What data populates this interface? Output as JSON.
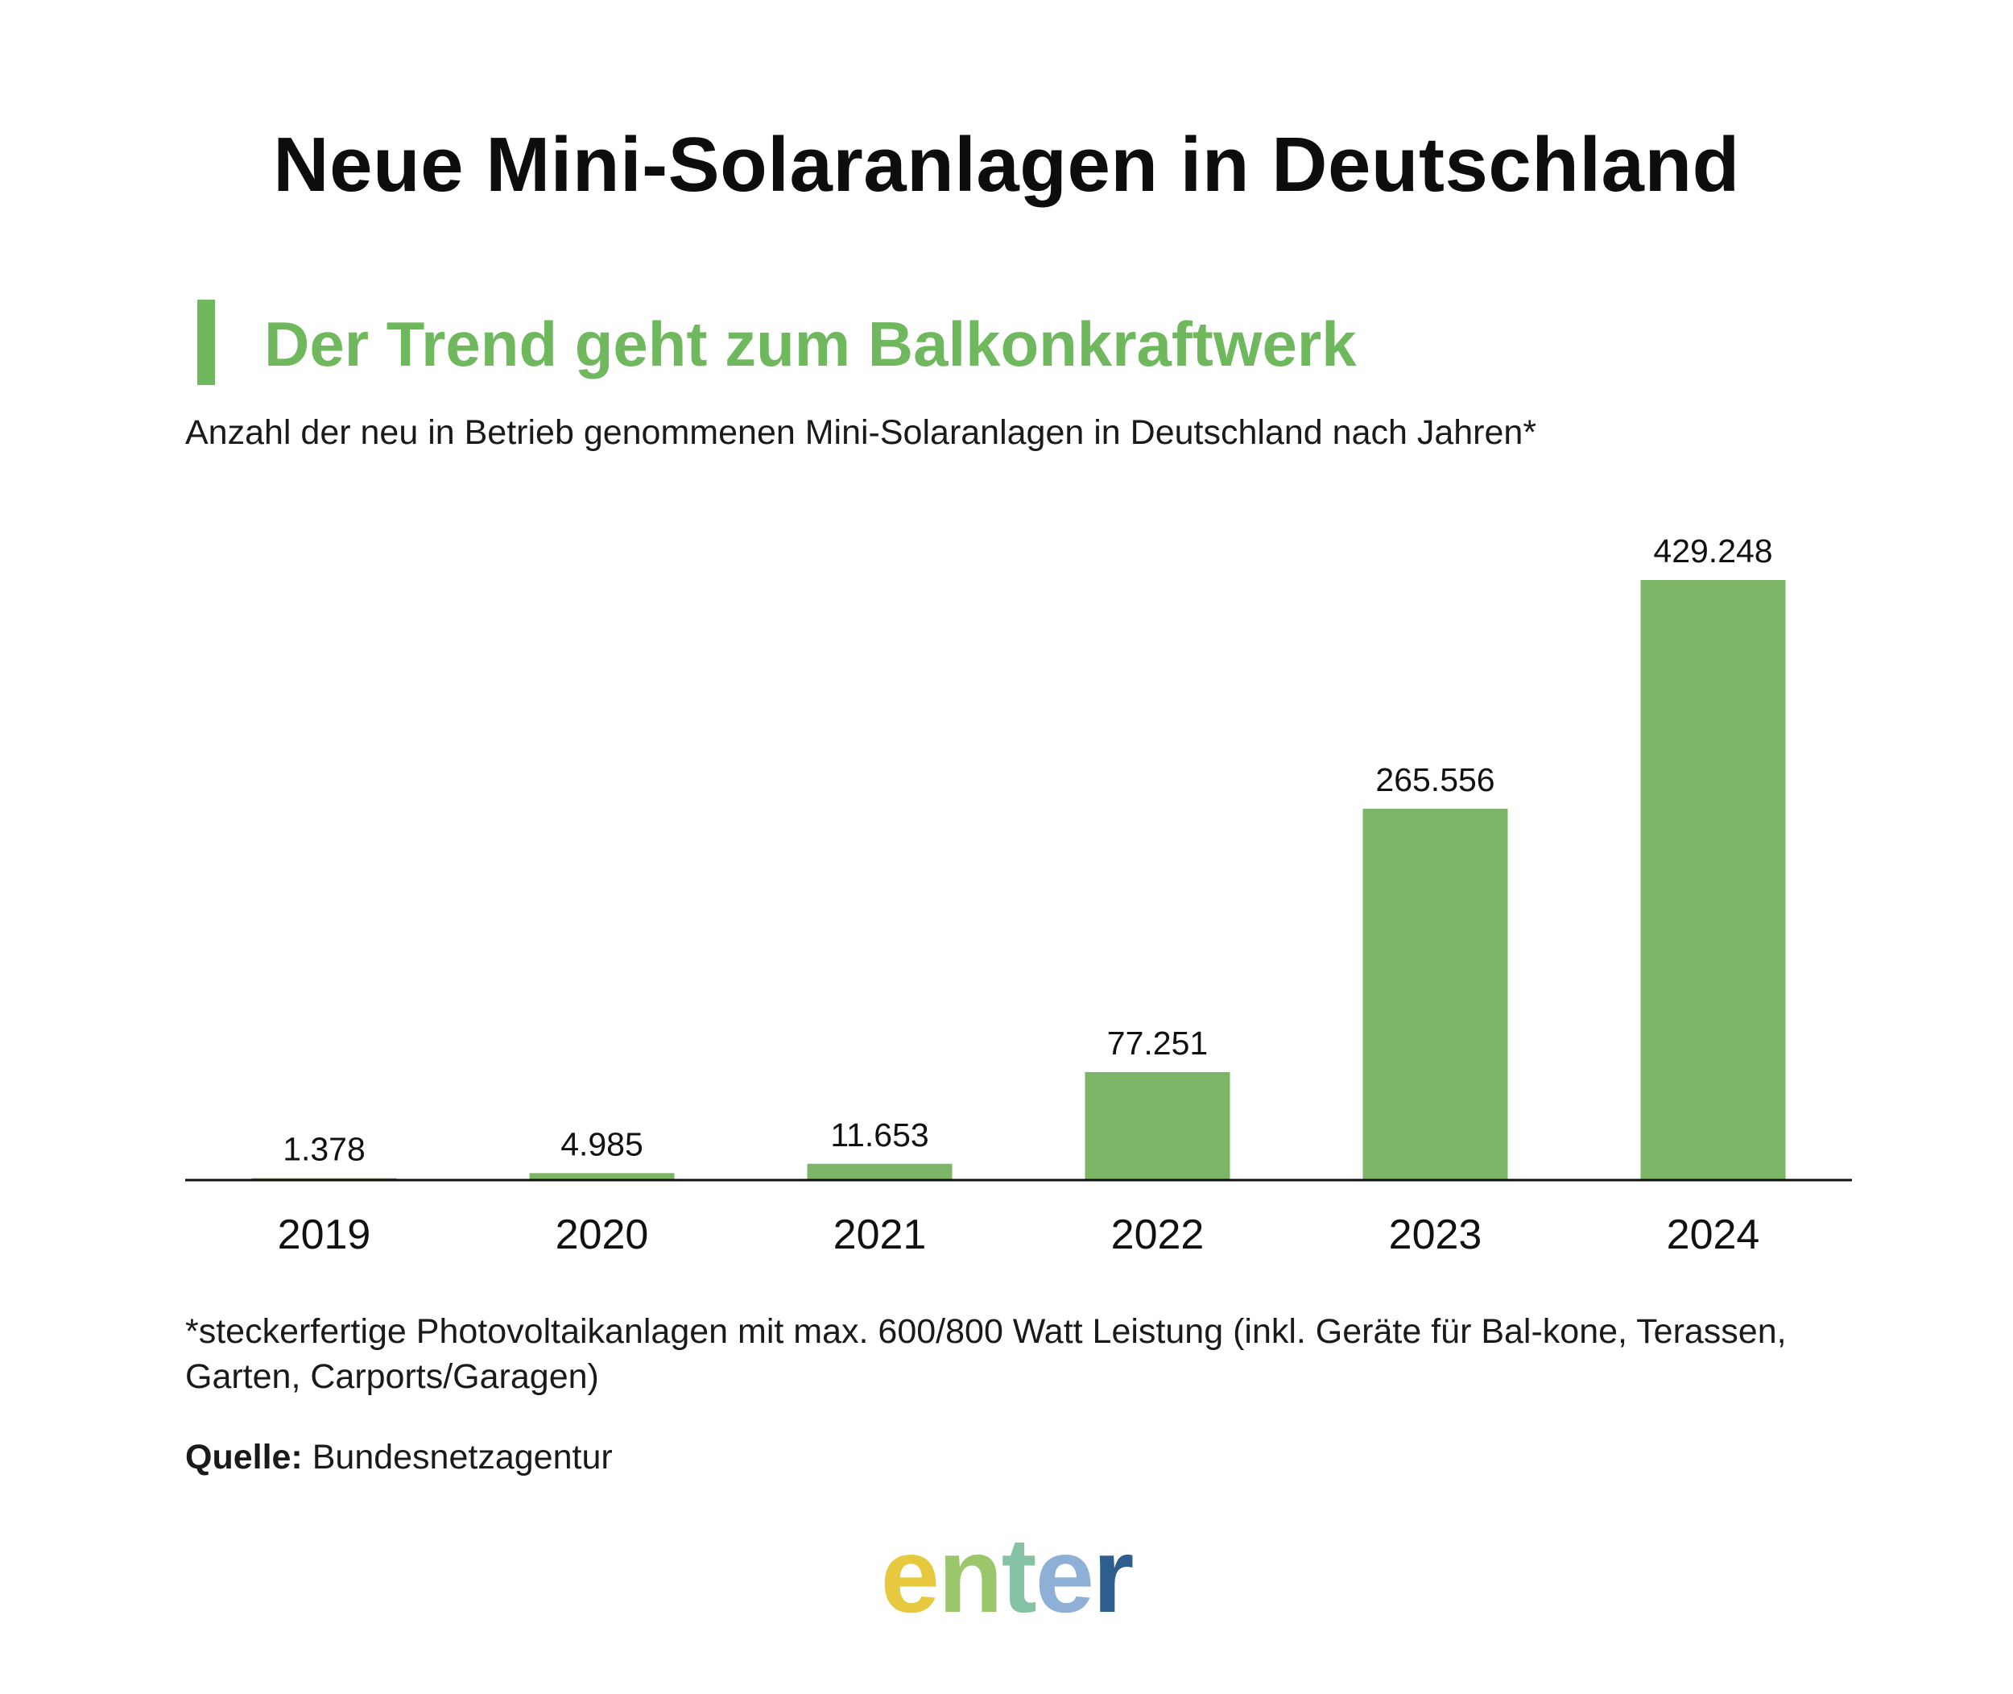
{
  "page": {
    "title": "Neue Mini-Solaranlagen in Deutschland",
    "subtitle": "Der Trend geht zum Balkonkraftwerk",
    "caption": "Anzahl der neu in Betrieb genommenen Mini-Solaranlagen in Deutschland nach Jahren*",
    "footnote": "*steckerfertige Photovoltaikanlagen mit max. 600/800 Watt Leistung (inkl. Geräte für Bal-kone, Terassen, Garten, Carports/Garagen)",
    "source_label": "Quelle:",
    "source_value": "Bundesnetzagentur",
    "logo_text": "enter",
    "logo_letters": [
      "e",
      "n",
      "t",
      "e",
      "r"
    ]
  },
  "colors": {
    "bar": "#7db567",
    "accent": "#6fb85e",
    "text": "#111111",
    "axis": "#111111",
    "logo": [
      "#e6c93e",
      "#9cc66b",
      "#86c2a4",
      "#8fb0d6",
      "#2e5e8e"
    ]
  },
  "chart_data": {
    "type": "bar",
    "title": "Der Trend geht zum Balkonkraftwerk",
    "xlabel": "",
    "ylabel": "",
    "categories": [
      "2019",
      "2020",
      "2021",
      "2022",
      "2023",
      "2024"
    ],
    "values": [
      1378,
      4985,
      11653,
      77251,
      265556,
      429248
    ],
    "labels": [
      "1.378",
      "4.985",
      "11.653",
      "77.251",
      "265.556",
      "429.248"
    ],
    "ylim": [
      0,
      429248
    ],
    "grid": false,
    "legend": "none"
  }
}
